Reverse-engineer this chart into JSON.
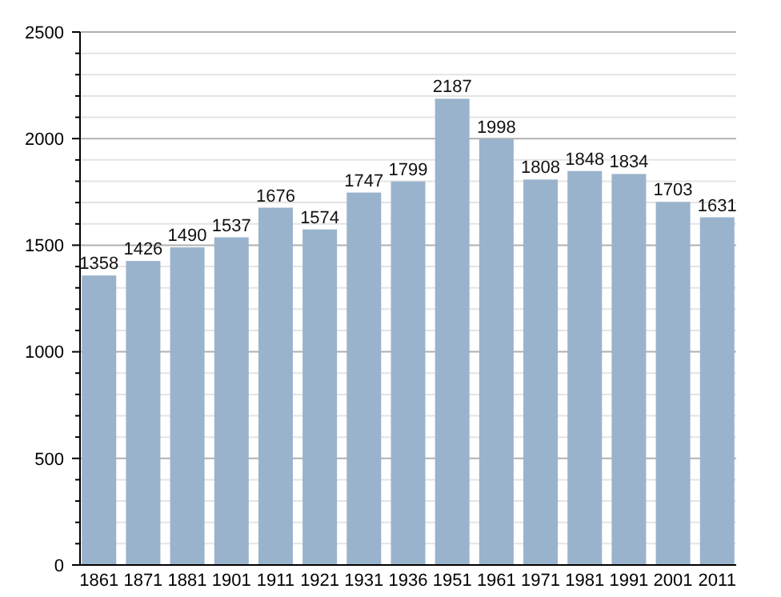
{
  "chart_data": {
    "type": "bar",
    "categories": [
      "1861",
      "1871",
      "1881",
      "1901",
      "1911",
      "1921",
      "1931",
      "1936",
      "1951",
      "1961",
      "1971",
      "1981",
      "1991",
      "2001",
      "2011"
    ],
    "values": [
      1358,
      1426,
      1490,
      1537,
      1676,
      1574,
      1747,
      1799,
      2187,
      1998,
      1808,
      1848,
      1834,
      1703,
      1631
    ],
    "color": "#99b3cc",
    "ylim": [
      0,
      2500
    ],
    "yticks": [
      0,
      {
        "value": 100,
        "label": null
      },
      {
        "value": 200,
        "label": null
      },
      {
        "value": 300,
        "label": null
      },
      {
        "value": 400,
        "label": null
      },
      500,
      {
        "value": 600,
        "label": null
      },
      {
        "value": 700,
        "label": null
      },
      {
        "value": 800,
        "label": null
      },
      {
        "value": 900,
        "label": null
      },
      1000,
      {
        "value": 1100,
        "label": null
      },
      {
        "value": 1200,
        "label": null
      },
      {
        "value": 1300,
        "label": null
      },
      {
        "value": 1400,
        "label": null
      },
      1500,
      {
        "value": 1600,
        "label": null
      },
      {
        "value": 1700,
        "label": null
      },
      {
        "value": 1800,
        "label": null
      },
      {
        "value": 1900,
        "label": null
      },
      2000,
      {
        "value": 2100,
        "label": null
      },
      {
        "value": 2200,
        "label": null
      },
      {
        "value": 2300,
        "label": null
      },
      {
        "value": 2400,
        "label": null
      },
      2500
    ],
    "grid": true,
    "data_labels": true
  }
}
